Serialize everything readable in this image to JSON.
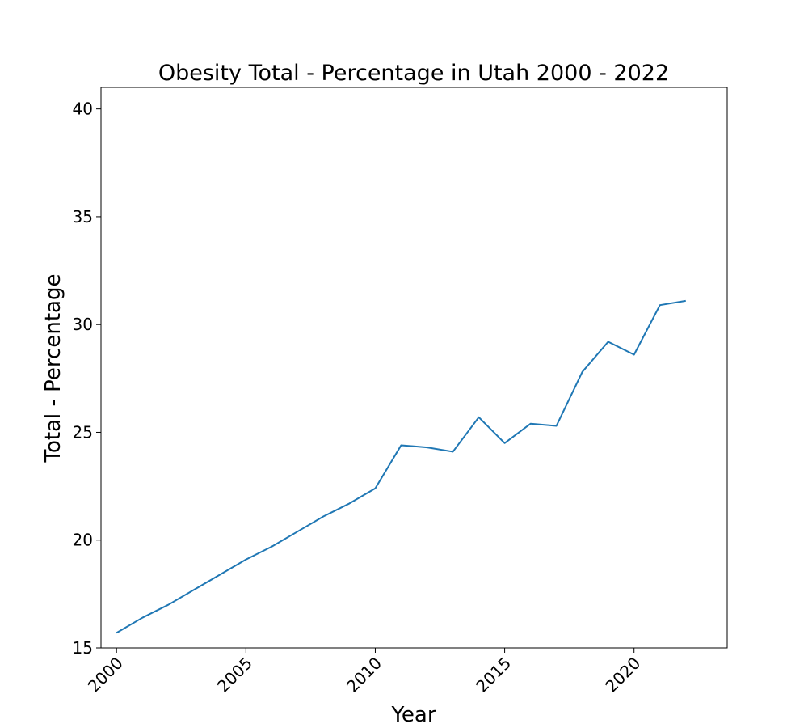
{
  "chart_data": {
    "type": "line",
    "title": "Obesity Total - Percentage in Utah 2000 - 2022",
    "xlabel": "Year",
    "ylabel": "Total - Percentage",
    "xlim": [
      1999.4,
      2023.6
    ],
    "ylim": [
      15,
      41
    ],
    "x_ticks": [
      2000,
      2005,
      2010,
      2015,
      2020
    ],
    "y_ticks": [
      15,
      20,
      25,
      30,
      35,
      40
    ],
    "grid": false,
    "series": [
      {
        "color": "#1f77b4",
        "x": [
          2000,
          2001,
          2002,
          2003,
          2004,
          2005,
          2006,
          2007,
          2008,
          2009,
          2010,
          2011,
          2012,
          2013,
          2014,
          2015,
          2016,
          2017,
          2018,
          2019,
          2020,
          2021,
          2022
        ],
        "y": [
          15.7,
          16.4,
          17.0,
          17.7,
          18.4,
          19.1,
          19.7,
          20.4,
          21.1,
          21.7,
          22.4,
          24.4,
          24.3,
          24.1,
          25.7,
          24.5,
          25.4,
          25.3,
          27.8,
          29.2,
          28.6,
          30.9,
          31.1
        ]
      }
    ]
  }
}
